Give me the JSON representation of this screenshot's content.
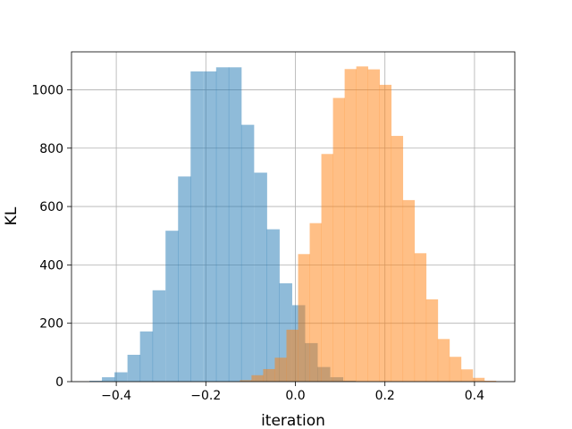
{
  "chart_data": {
    "type": "bar",
    "title": "",
    "xlabel": "iteration",
    "ylabel": "KL",
    "xlim": [
      -0.5,
      0.49
    ],
    "ylim": [
      0,
      1130
    ],
    "xticks": [
      -0.4,
      -0.2,
      0.0,
      0.2,
      0.4
    ],
    "xtick_labels": [
      "−0.4",
      "−0.2",
      "0.0",
      "0.2",
      "0.4"
    ],
    "yticks": [
      0,
      200,
      400,
      600,
      800,
      1000
    ],
    "ytick_labels": [
      "0",
      "200",
      "400",
      "600",
      "800",
      "1000"
    ],
    "grid": true,
    "legend": "none",
    "series": [
      {
        "color": "#1f77b4",
        "opacity": 0.5,
        "bin_width": 0.0283,
        "bin_starts": [
          -0.46,
          -0.432,
          -0.404,
          -0.375,
          -0.347,
          -0.319,
          -0.29,
          -0.262,
          -0.234,
          -0.205,
          -0.177,
          -0.149,
          -0.121,
          -0.092,
          -0.064,
          -0.036,
          -0.007,
          0.021,
          0.049,
          0.078,
          0.106
        ],
        "values": [
          3,
          15,
          32,
          92,
          172,
          313,
          517,
          703,
          1063,
          1063,
          1077,
          1077,
          880,
          716,
          522,
          337,
          262,
          132,
          50,
          15,
          3
        ]
      },
      {
        "color": "#ff7f0e",
        "opacity": 0.5,
        "bin_width": 0.026,
        "bin_starts": [
          -0.124,
          -0.098,
          -0.072,
          -0.046,
          -0.02,
          0.006,
          0.032,
          0.058,
          0.084,
          0.11,
          0.136,
          0.162,
          0.188,
          0.214,
          0.24,
          0.266,
          0.292,
          0.318,
          0.344,
          0.37,
          0.396,
          0.422
        ],
        "values": [
          5,
          22,
          43,
          82,
          178,
          437,
          543,
          780,
          972,
          1071,
          1080,
          1070,
          1017,
          842,
          622,
          440,
          282,
          146,
          85,
          42,
          13,
          3
        ]
      }
    ]
  }
}
